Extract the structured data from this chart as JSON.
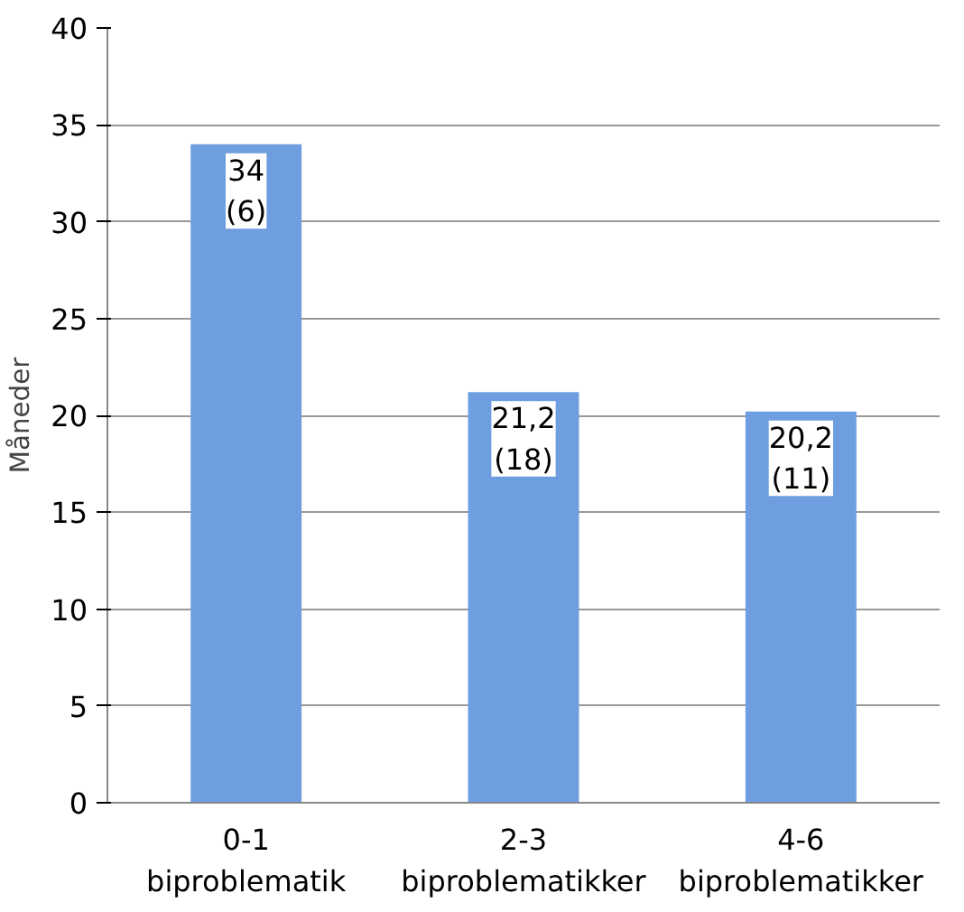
{
  "chart_data": {
    "type": "bar",
    "ylabel": "Måneder",
    "categories": [
      "0-1\nbiproblematik",
      "2-3\nbiproblematikker",
      "4-6\nbiproblematikker"
    ],
    "values": [
      34,
      21.2,
      20.2
    ],
    "value_labels": [
      "34\n(6)",
      "21,2\n(18)",
      "20,2\n(11)"
    ],
    "color": "#6f9ee0",
    "ylim": [
      0,
      40
    ],
    "yticks": [
      0,
      5,
      10,
      15,
      20,
      25,
      30,
      35,
      40
    ],
    "grid": "y"
  }
}
